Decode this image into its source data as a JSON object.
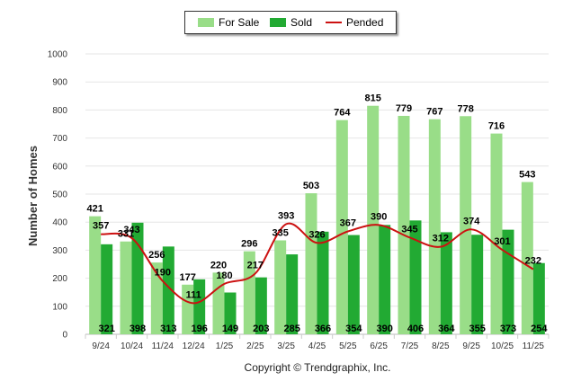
{
  "chart_data": {
    "type": "bar",
    "ylabel": "Number of Homes",
    "ylim": [
      0,
      1000
    ],
    "yticks": [
      "0",
      "100",
      "200",
      "300",
      "400",
      "500",
      "600",
      "700",
      "800",
      "900",
      "1000"
    ],
    "categories": [
      "9/24",
      "10/24",
      "11/24",
      "12/24",
      "1/25",
      "2/25",
      "3/25",
      "4/25",
      "5/25",
      "6/25",
      "7/25",
      "8/25",
      "9/25",
      "10/25",
      "11/25"
    ],
    "series": [
      {
        "name": "For Sale",
        "kind": "bar",
        "color": "#99dd88",
        "values": [
          421,
          331,
          256,
          177,
          220,
          296,
          335,
          503,
          764,
          815,
          779,
          767,
          778,
          716,
          543
        ]
      },
      {
        "name": "Sold",
        "kind": "bar",
        "color": "#22aa33",
        "values": [
          321,
          398,
          313,
          196,
          149,
          203,
          285,
          366,
          354,
          390,
          406,
          364,
          355,
          373,
          254
        ]
      },
      {
        "name": "Pended",
        "kind": "line",
        "color": "#cc1111",
        "values": [
          357,
          343,
          190,
          111,
          180,
          217,
          393,
          326,
          367,
          390,
          345,
          312,
          374,
          301,
          232
        ]
      }
    ],
    "legend": [
      "For Sale",
      "Sold",
      "Pended"
    ],
    "legend_position": "top-center",
    "grid": true
  },
  "footer": {
    "copyright": "Copyright © Trendgraphix, Inc."
  }
}
